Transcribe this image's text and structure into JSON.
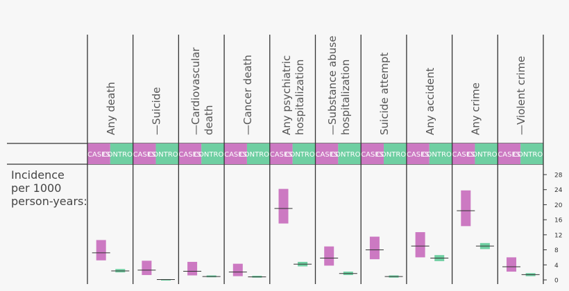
{
  "chart_data": {
    "type": "bar",
    "title": "",
    "ylabel_lines": [
      "Incidence",
      "per 1000",
      "person-years:"
    ],
    "ylim": [
      0,
      28
    ],
    "yticks": [
      0,
      4,
      8,
      12,
      16,
      20,
      24,
      28
    ],
    "group_labels": [
      "CASES",
      "CONTROLS"
    ],
    "colors": {
      "cases": "#cc79c2",
      "controls": "#6fcfa2",
      "line": "#333333",
      "text": "#555555"
    },
    "categories": [
      {
        "label_lines": [
          "Any death"
        ],
        "cases": {
          "low": 5.2,
          "mid": 7.2,
          "high": 10.6
        },
        "controls": {
          "low": 2.0,
          "mid": 2.4,
          "high": 2.9
        }
      },
      {
        "label_lines": [
          "—Suicide"
        ],
        "cases": {
          "low": 1.3,
          "mid": 2.6,
          "high": 5.1
        },
        "controls": {
          "low": 0.0,
          "mid": 0.1,
          "high": 0.2
        }
      },
      {
        "label_lines": [
          "—Cardiovascular",
          "death"
        ],
        "cases": {
          "low": 1.2,
          "mid": 2.3,
          "high": 4.8
        },
        "controls": {
          "low": 0.7,
          "mid": 0.9,
          "high": 1.2
        }
      },
      {
        "label_lines": [
          "—Cancer death"
        ],
        "cases": {
          "low": 1.0,
          "mid": 2.1,
          "high": 4.3
        },
        "controls": {
          "low": 0.6,
          "mid": 0.8,
          "high": 1.1
        }
      },
      {
        "label_lines": [
          "Any psychiatric",
          "hospitalization"
        ],
        "cases": {
          "low": 15.0,
          "mid": 19.0,
          "high": 24.2
        },
        "controls": {
          "low": 3.6,
          "mid": 4.2,
          "high": 4.8
        }
      },
      {
        "label_lines": [
          "—Substance abuse",
          "hospitalization"
        ],
        "cases": {
          "low": 3.8,
          "mid": 5.8,
          "high": 8.9
        },
        "controls": {
          "low": 1.3,
          "mid": 1.7,
          "high": 2.2
        }
      },
      {
        "label_lines": [
          "Suicide attempt"
        ],
        "cases": {
          "low": 5.5,
          "mid": 8.0,
          "high": 11.5
        },
        "controls": {
          "low": 0.6,
          "mid": 0.9,
          "high": 1.2
        }
      },
      {
        "label_lines": [
          "Any accident"
        ],
        "cases": {
          "low": 6.0,
          "mid": 9.0,
          "high": 12.7
        },
        "controls": {
          "low": 5.0,
          "mid": 5.8,
          "high": 6.6
        }
      },
      {
        "label_lines": [
          "Any crime"
        ],
        "cases": {
          "low": 14.3,
          "mid": 18.4,
          "high": 23.8
        },
        "controls": {
          "low": 8.2,
          "mid": 9.0,
          "high": 9.8
        }
      },
      {
        "label_lines": [
          "—Violent crime"
        ],
        "cases": {
          "low": 2.2,
          "mid": 3.5,
          "high": 6.0
        },
        "controls": {
          "low": 1.0,
          "mid": 1.4,
          "high": 1.8
        }
      }
    ]
  }
}
